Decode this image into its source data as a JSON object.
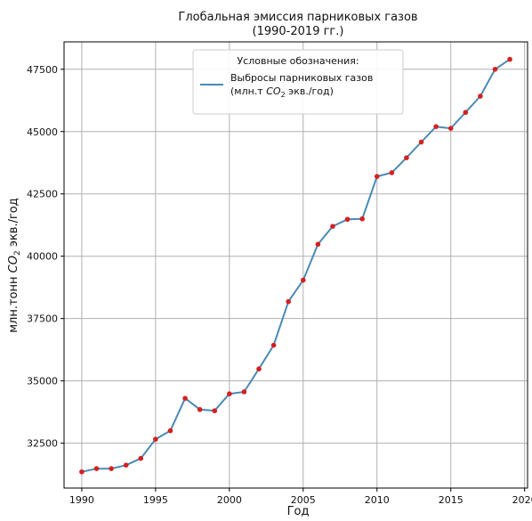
{
  "chart_data": {
    "type": "line",
    "title_line1": "Глобальная эмиссия парниковых газов",
    "title_line2": "(1990-2019 гг.)",
    "xlabel": "Год",
    "ylabel_prefix": "млн.тонн ",
    "ylabel_co": "CO",
    "ylabel_sub": "2",
    "ylabel_suffix": " экв./год",
    "xlim": [
      1988.8,
      2020.2
    ],
    "ylim": [
      30700,
      48600
    ],
    "x_ticks": [
      1990,
      1995,
      2000,
      2005,
      2010,
      2015,
      2020
    ],
    "y_ticks": [
      32500,
      35000,
      37500,
      40000,
      42500,
      45000,
      47500
    ],
    "grid": true,
    "legend": {
      "placement": "top-center",
      "title": "Условные обозначения:",
      "label_line1": "Выбросы парниковых газов",
      "label_line2_prefix": "(млн.т ",
      "label_line2_co": "CO",
      "label_line2_sub": "2",
      "label_line2_suffix": " экв./год)"
    },
    "series": [
      {
        "name": "Выбросы парниковых газов (млн.т CO2 экв./год)",
        "line_color": "#4a8ab5",
        "marker_color": "#d62020",
        "x": [
          1990,
          1991,
          1992,
          1993,
          1994,
          1995,
          1996,
          1997,
          1998,
          1999,
          2000,
          2001,
          2002,
          2003,
          2004,
          2005,
          2006,
          2007,
          2008,
          2009,
          2010,
          2011,
          2012,
          2013,
          2014,
          2015,
          2016,
          2017,
          2018,
          2019
        ],
        "y": [
          31350,
          31480,
          31480,
          31620,
          31890,
          32660,
          33000,
          34300,
          33850,
          33800,
          34480,
          34560,
          35480,
          36430,
          38180,
          39040,
          40480,
          41200,
          41480,
          41500,
          43200,
          43350,
          43950,
          44580,
          45200,
          45130,
          45770,
          46420,
          47500,
          47900
        ]
      }
    ]
  }
}
